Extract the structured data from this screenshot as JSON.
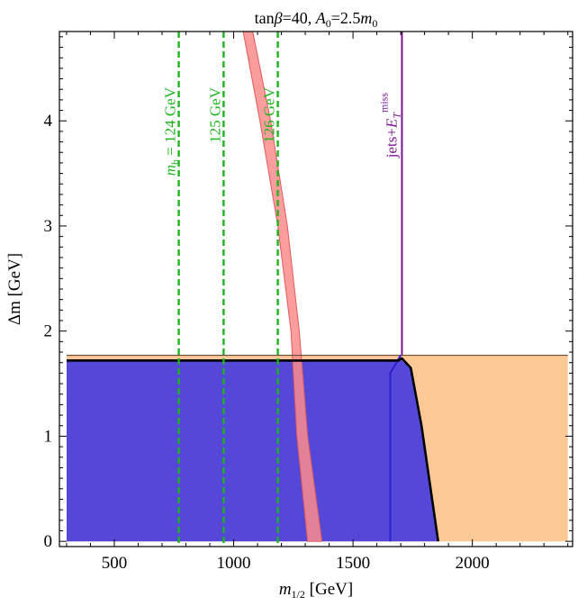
{
  "chart_data": {
    "type": "area",
    "title": {
      "prefix": "tan",
      "beta": "β",
      "after_beta": "=40, ",
      "a_main": "A",
      "a_sub": "0",
      "after_a": "=2.5",
      "m_main": "m",
      "m_sub": "0"
    },
    "xlabel": {
      "main": "m",
      "sub": "1/2",
      "rest": " [GeV]"
    },
    "ylabel": "Δm [GeV]",
    "xlim": [
      270,
      2420
    ],
    "ylim": [
      -0.05,
      4.85
    ],
    "xticks": [
      500,
      1000,
      1500,
      2000
    ],
    "yticks": [
      0,
      1,
      2,
      3,
      4
    ],
    "xtick_labels": [
      "500",
      "1000",
      "1500",
      "2000"
    ],
    "ytick_labels": [
      "0",
      "1",
      "2",
      "3",
      "4"
    ],
    "grid": false,
    "colors": {
      "orange": "#fcc895",
      "blue": "#5547d8",
      "blue_edge": "#2a1fd0",
      "pink": "#fb8c8c",
      "pink_edge": "#e05a5a",
      "green": "#1eb41e",
      "purple": "#7a1490"
    },
    "regions": [
      {
        "name": "orange-region",
        "points": [
          [
            300,
            0
          ],
          [
            2400,
            0
          ],
          [
            2400,
            1.77
          ],
          [
            300,
            1.77
          ]
        ]
      },
      {
        "name": "blue-region",
        "points": [
          [
            300,
            0
          ],
          [
            1855,
            0
          ],
          [
            1785,
            1.1
          ],
          [
            1740,
            1.65
          ],
          [
            1700,
            1.73
          ],
          [
            300,
            1.73
          ]
        ]
      }
    ],
    "black_boundary": [
      [
        300,
        1.72
      ],
      [
        1690,
        1.72
      ],
      [
        1705,
        1.74
      ],
      [
        1742,
        1.65
      ],
      [
        1787,
        1.1
      ],
      [
        1857,
        0
      ]
    ],
    "blue_edge_line": [
      [
        1656,
        0
      ],
      [
        1656,
        1.6
      ],
      [
        1700,
        1.77
      ]
    ],
    "orange_top_line": 1.77,
    "pink_band": {
      "left": [
        [
          1040,
          4.85
        ],
        [
          1110,
          4.0
        ],
        [
          1185,
          3.0
        ],
        [
          1240,
          2.0
        ],
        [
          1265,
          1.0
        ],
        [
          1310,
          0
        ]
      ],
      "right": [
        [
          1080,
          4.85
        ],
        [
          1155,
          4.0
        ],
        [
          1225,
          3.0
        ],
        [
          1275,
          2.0
        ],
        [
          1310,
          1.0
        ],
        [
          1370,
          0
        ]
      ]
    },
    "higgs_lines": [
      {
        "x": 770,
        "label": {
          "main": "m",
          "sub": "h",
          "rest": " = 124 GeV"
        }
      },
      {
        "x": 958,
        "label": {
          "main": "125 GeV",
          "sub": "",
          "rest": ""
        }
      },
      {
        "x": 1185,
        "label": {
          "main": "126 GeV",
          "sub": "",
          "rest": ""
        }
      }
    ],
    "jets_line": {
      "x": 1705,
      "from_y": 1.77,
      "label": {
        "main": "jets+",
        "e": "E",
        "e_sub": "T",
        "e_sup": "miss"
      }
    }
  }
}
